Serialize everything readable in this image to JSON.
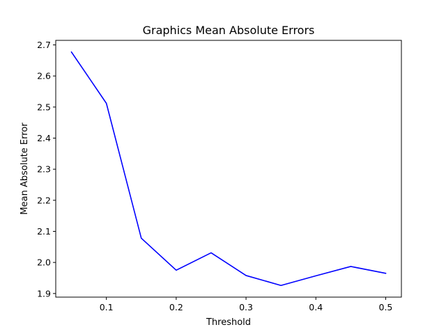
{
  "chart_data": {
    "type": "line",
    "title": "Graphics Mean Absolute Errors",
    "xlabel": "Threshold",
    "ylabel": "Mean Absolute Error",
    "x": [
      0.05,
      0.1,
      0.15,
      0.2,
      0.25,
      0.3,
      0.35,
      0.4,
      0.45,
      0.5
    ],
    "series": [
      {
        "values": [
          2.677,
          2.512,
          2.078,
          1.975,
          2.031,
          1.958,
          1.926,
          1.957,
          1.987,
          1.965
        ],
        "color": "#0000ff"
      }
    ],
    "xlim": [
      0.0275,
      0.5225
    ],
    "ylim": [
      1.8884,
      2.7146
    ],
    "xticks": [
      0.1,
      0.2,
      0.3,
      0.4,
      0.5
    ],
    "xtick_labels": [
      "0.1",
      "0.2",
      "0.3",
      "0.4",
      "0.5"
    ],
    "yticks": [
      1.9,
      2.0,
      2.1,
      2.2,
      2.3,
      2.4,
      2.5,
      2.6,
      2.7
    ],
    "ytick_labels": [
      "1.9",
      "2.0",
      "2.1",
      "2.2",
      "2.3",
      "2.4",
      "2.5",
      "2.6",
      "2.7"
    ],
    "grid": false,
    "legend": "none"
  }
}
